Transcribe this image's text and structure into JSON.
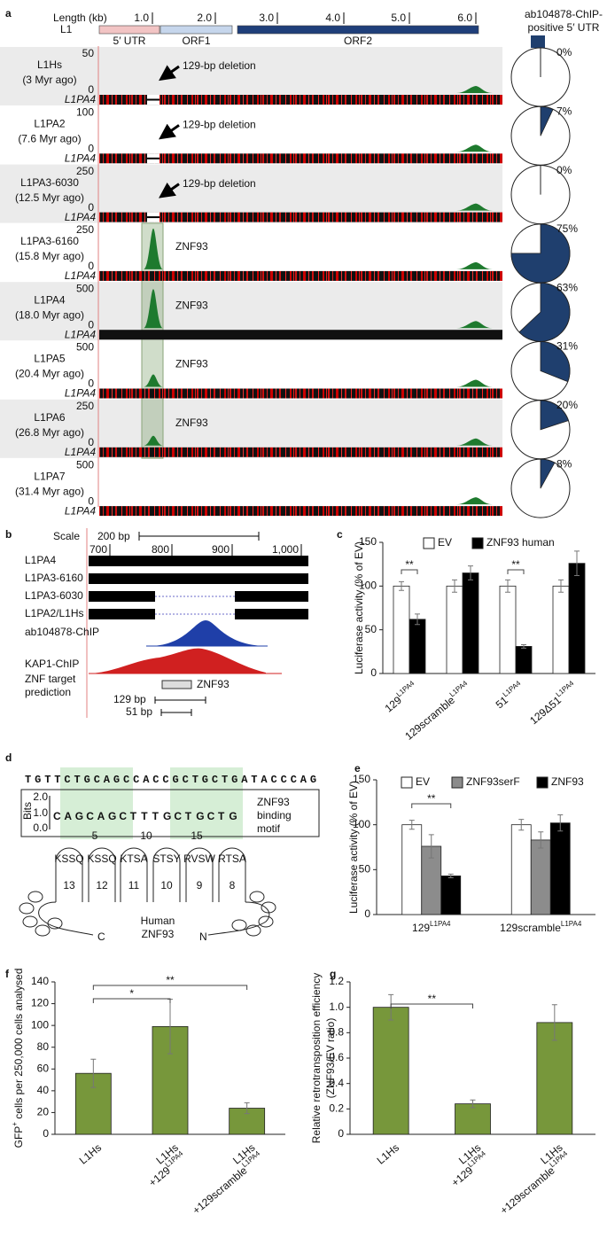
{
  "panel_a": {
    "label": "a",
    "scale_title": "Length (kb)",
    "scale_ticks": [
      "1.0",
      "2.0",
      "3.0",
      "4.0",
      "5.0",
      "6.0"
    ],
    "element": "L1",
    "regions": [
      "5′ UTR",
      "ORF1",
      "ORF2"
    ],
    "pie_title_lines": [
      "ab104878-ChIP-",
      "positive 5′ UTR"
    ],
    "reference": "L1PA4",
    "tracks": [
      {
        "name": "L1Hs",
        "age": "(3 Myr ago)",
        "ymax": "50",
        "ymin": "0",
        "note": "129-bp deletion"
      },
      {
        "name": "L1PA2",
        "age": "(7.6 Myr ago)",
        "ymax": "100",
        "ymin": "0",
        "note": "129-bp deletion"
      },
      {
        "name": "L1PA3-6030",
        "age": "(12.5 Myr ago)",
        "ymax": "250",
        "ymin": "0",
        "note": "129-bp deletion"
      },
      {
        "name": "L1PA3-6160",
        "age": "(15.8 Myr ago)",
        "ymax": "250",
        "ymin": "0",
        "note": "ZNF93"
      },
      {
        "name": "L1PA4",
        "age": "(18.0 Myr ago)",
        "ymax": "500",
        "ymin": "0",
        "note": "ZNF93"
      },
      {
        "name": "L1PA5",
        "age": "(20.4 Myr ago)",
        "ymax": "500",
        "ymin": "0",
        "note": "ZNF93"
      },
      {
        "name": "L1PA6",
        "age": "(26.8 Myr ago)",
        "ymax": "250",
        "ymin": "0",
        "note": "ZNF93"
      },
      {
        "name": "L1PA7",
        "age": "(31.4 Myr ago)",
        "ymax": "500",
        "ymin": "0"
      }
    ]
  },
  "panel_b": {
    "label": "b",
    "scale": "Scale",
    "scale_size": "200 bp",
    "ticks": [
      "700",
      "800",
      "900",
      "1,000"
    ],
    "rows": [
      "L1PA4",
      "L1PA3-6160",
      "L1PA3-6030",
      "L1PA2/L1Hs"
    ],
    "chip1": "ab104878-ChIP",
    "chip2": "KAP1-ChIP",
    "prediction_lines": [
      "ZNF target",
      "prediction"
    ],
    "prediction": "ZNF93",
    "span1": "129 bp",
    "span2": "51 bp"
  },
  "panel_d": {
    "label": "d",
    "sequence": "TGTTCTGCAGCCACCGCTGCTGATACCCAG",
    "axis_title": "Bits",
    "bits_ticks": [
      "2.0",
      "1.0",
      "0.0"
    ],
    "position_ticks": [
      "5",
      "10",
      "15"
    ],
    "logo": "CAGCAGCTTTGCTGCTG",
    "motif_lines": [
      "ZNF93",
      "binding",
      "motif"
    ],
    "fingers": [
      "KSSQ",
      "KSSQ",
      "KTSA",
      "STSY",
      "RVSW",
      "RTSA"
    ],
    "finger_numbers": [
      "13",
      "12",
      "11",
      "10",
      "9",
      "8"
    ],
    "c_term": "C",
    "n_term": "N",
    "protein_lines": [
      "Human",
      "ZNF93"
    ]
  },
  "chart_data": [
    {
      "type": "pie",
      "values": [
        0,
        7,
        0,
        75,
        63,
        31,
        20,
        8
      ],
      "value_labels": [
        "0%",
        "7%",
        "0%",
        "75%",
        "63%",
        "31%",
        "20%",
        "8%"
      ],
      "color": "#1f3f6e"
    },
    {
      "type": "bar",
      "panel_label": "c",
      "ylabel": "Luciferase activity (% of EV)",
      "ylim": [
        0,
        150
      ],
      "yticks": [
        0,
        50,
        100,
        150
      ],
      "categories": [
        "129",
        "129scramble",
        "51",
        "129Δ51"
      ],
      "category_superscripts": [
        "L1PA4",
        "L1PA4",
        "L1PA4",
        "L1PA4"
      ],
      "series": [
        {
          "name": "EV",
          "color": "#ffffff",
          "values": [
            100,
            100,
            100,
            100
          ],
          "errors": [
            5,
            7,
            7,
            7
          ]
        },
        {
          "name": "ZNF93 human",
          "color": "#000000",
          "values": [
            62,
            115,
            31,
            126
          ],
          "errors": [
            6,
            8,
            2,
            14
          ]
        }
      ],
      "annotations": [
        "**",
        "**"
      ]
    },
    {
      "type": "bar",
      "panel_label": "e",
      "ylabel": "Luciferase activity (% of EV)",
      "ylim": [
        0,
        150
      ],
      "yticks": [
        0,
        50,
        100,
        150
      ],
      "categories": [
        "129",
        "129scramble"
      ],
      "category_superscripts": [
        "L1PA4",
        "L1PA4"
      ],
      "series": [
        {
          "name": "EV",
          "color": "#ffffff",
          "values": [
            100,
            100
          ],
          "errors": [
            5,
            6
          ]
        },
        {
          "name": "ZNF93serF",
          "color": "#8c8c8c",
          "values": [
            76,
            83
          ],
          "errors": [
            13,
            9
          ]
        },
        {
          "name": "ZNF93",
          "color": "#000000",
          "values": [
            43,
            102
          ],
          "errors": [
            2,
            9
          ]
        }
      ],
      "annotations": [
        "**"
      ]
    },
    {
      "type": "bar",
      "panel_label": "f",
      "ylabel": "GFP",
      "ylabel_sup": "+",
      "ylabel_rest": " cells per 250,000 cells analysed",
      "ylim": [
        0,
        140
      ],
      "yticks": [
        0,
        20,
        40,
        60,
        80,
        100,
        120,
        140
      ],
      "categories": [
        "L1Hs",
        "L1Hs",
        "L1Hs"
      ],
      "category_second_lines": [
        null,
        "+129",
        "+129scramble"
      ],
      "category_superscripts": [
        null,
        "L1PA4",
        "L1PA4"
      ],
      "values": [
        56,
        99,
        24
      ],
      "errors": [
        13,
        25,
        5
      ],
      "color": "#77973b",
      "annotations": [
        "*",
        "**"
      ]
    },
    {
      "type": "bar",
      "panel_label": "g",
      "ylabel": "Relative retrotransposition efficiency",
      "ylabel2": "(ZNF93/EV ratio)",
      "ylim": [
        0,
        1.2
      ],
      "yticks": [
        0,
        0.2,
        0.4,
        0.6,
        0.8,
        {
          "value": 1,
          "label": "1.0"
        },
        1.2
      ],
      "categories": [
        "L1Hs",
        "L1Hs",
        "L1Hs"
      ],
      "category_second_lines": [
        null,
        "+129",
        "+129scramble"
      ],
      "category_superscripts": [
        null,
        "L1PA4",
        "L1PA4"
      ],
      "values": [
        1.0,
        0.24,
        0.88
      ],
      "errors": [
        0.1,
        0.03,
        0.14
      ],
      "color": "#77973b",
      "annotations": [
        "**"
      ]
    }
  ]
}
